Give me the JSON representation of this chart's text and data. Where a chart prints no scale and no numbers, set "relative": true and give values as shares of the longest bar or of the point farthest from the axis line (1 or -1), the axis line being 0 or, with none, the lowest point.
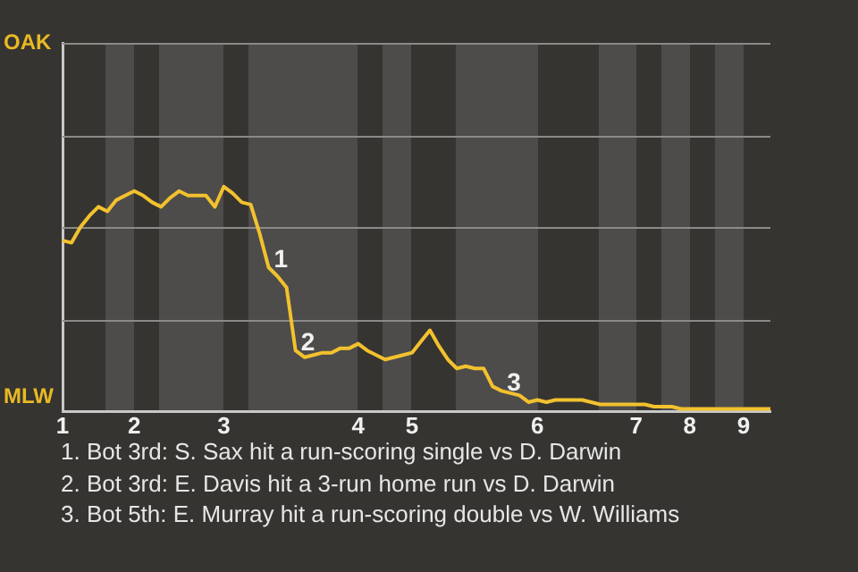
{
  "chart_data": {
    "type": "line",
    "relative": true,
    "categories": [
      "1",
      null,
      null,
      null,
      null,
      null,
      null,
      null,
      "2",
      null,
      null,
      null,
      null,
      null,
      null,
      null,
      null,
      null,
      "3",
      null,
      null,
      null,
      null,
      null,
      null,
      null,
      null,
      null,
      null,
      null,
      null,
      null,
      null,
      "4",
      null,
      null,
      null,
      null,
      null,
      "5",
      null,
      null,
      null,
      null,
      null,
      null,
      null,
      null,
      null,
      null,
      null,
      null,
      null,
      "6",
      null,
      null,
      null,
      null,
      null,
      null,
      null,
      null,
      null,
      null,
      "7",
      null,
      null,
      null,
      null,
      null,
      "8",
      null,
      null,
      null,
      null,
      null,
      "9",
      null,
      null,
      null
    ],
    "legend": false,
    "marker": "none",
    "line_style": "solid",
    "series": [
      {
        "color": "#f2c12e",
        "values": [
          0.76,
          0.75,
          0.82,
          0.87,
          0.91,
          0.89,
          0.94,
          0.96,
          0.98,
          0.96,
          0.93,
          0.91,
          0.95,
          0.98,
          0.96,
          0.96,
          0.96,
          0.91,
          1,
          0.97,
          0.93,
          0.92,
          0.79,
          0.64,
          0.6,
          0.55,
          0.27,
          0.24,
          0.25,
          0.26,
          0.26,
          0.28,
          0.28,
          0.3,
          0.27,
          0.25,
          0.23,
          0.24,
          0.25,
          0.26,
          0.31,
          0.36,
          0.29,
          0.23,
          0.19,
          0.2,
          0.19,
          0.19,
          0.11,
          0.09,
          0.08,
          0.07,
          0.04,
          0.05,
          0.04,
          0.05,
          0.05,
          0.05,
          0.05,
          0.04,
          0.03,
          0.03,
          0.03,
          0.03,
          0.03,
          0.03,
          0.02,
          0.02,
          0.02,
          0.01,
          0.01,
          0.01,
          0.01,
          0.01,
          0.01,
          0.01,
          0.01,
          0.01,
          0.01,
          0.01
        ]
      }
    ],
    "ref_lines": [
      {
        "axis": "y",
        "value": 0.41,
        "color": "#8a8a88"
      },
      {
        "axis": "y",
        "value": 0.82,
        "color": "#8a8a88"
      },
      {
        "axis": "y",
        "value": 1.23,
        "color": "#8a8a88"
      },
      {
        "axis": "y",
        "value": 1.64,
        "color": "#8a8a88"
      }
    ],
    "annotations": [
      "OAK",
      "MLW",
      {
        "text": "1",
        "y": 0.64
      },
      {
        "text": "2",
        "y": 0.27
      },
      {
        "text": "3",
        "y": 0.09
      },
      "1. Bot 3rd: S. Sax hit a run-scoring single vs D. Darwin",
      "2. Bot 3rd: E. Davis hit a 3-run home run vs D. Darwin",
      "3. Bot 5th: E. Murray hit a run-scoring double vs W. Williams"
    ]
  }
}
